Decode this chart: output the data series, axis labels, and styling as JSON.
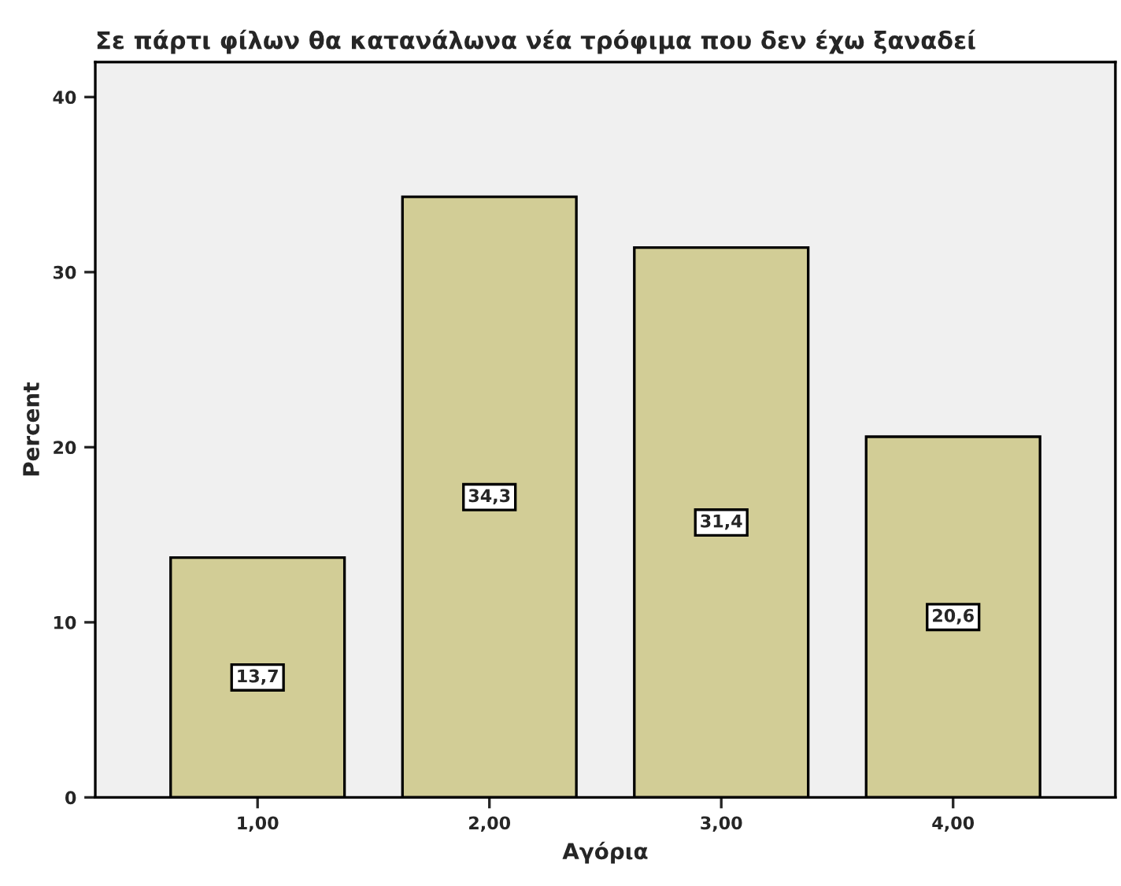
{
  "chart_data": {
    "type": "bar",
    "title": "Σε πάρτι φίλων θα κατανάλωνα νέα τρόφιμα που δεν έχω ξαναδεί",
    "xlabel": "Αγόρια",
    "ylabel": "Percent",
    "categories": [
      "1,00",
      "2,00",
      "3,00",
      "4,00"
    ],
    "values": [
      13.7,
      34.3,
      31.4,
      20.6
    ],
    "value_labels": [
      "13,7",
      "34,3",
      "31,4",
      "20,6"
    ],
    "color": "#d2cd96",
    "ylim": [
      0,
      42
    ],
    "yticks": [
      0,
      10,
      20,
      30,
      40
    ],
    "grid": false,
    "legend": false
  }
}
